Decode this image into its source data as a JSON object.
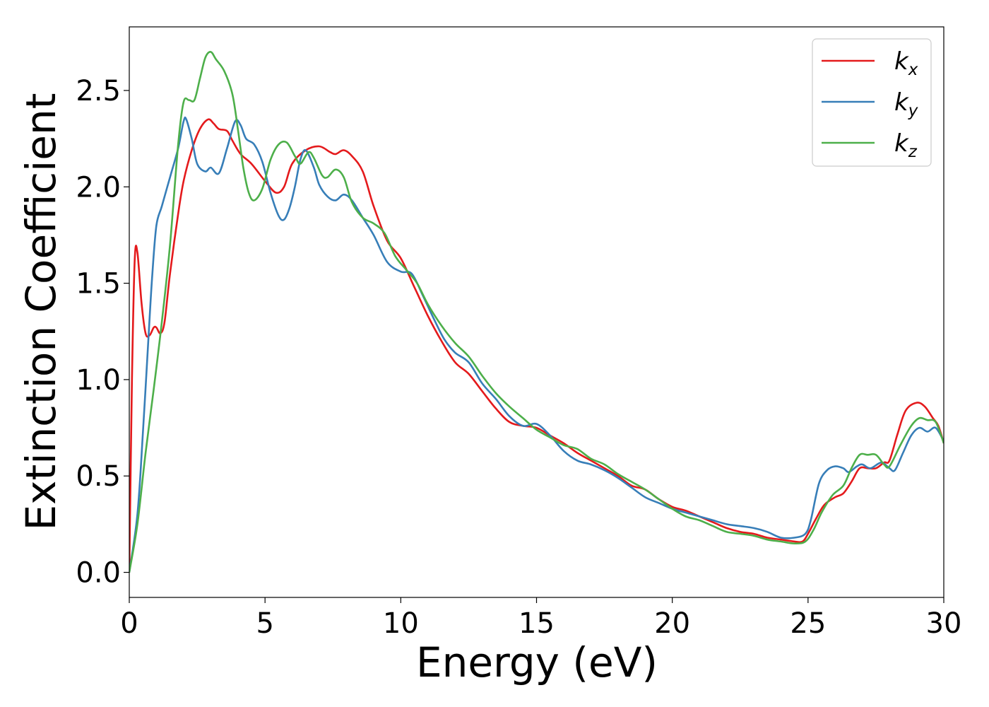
{
  "chart_data": {
    "type": "line",
    "title": "",
    "xlabel": "Energy (eV)",
    "ylabel": "Extinction Coefficient",
    "xlim": [
      0,
      30
    ],
    "ylim": [
      -0.13,
      2.83
    ],
    "xticks": [
      0,
      5,
      10,
      15,
      20,
      25,
      30
    ],
    "xtick_labels": [
      "0",
      "5",
      "10",
      "15",
      "20",
      "25",
      "30"
    ],
    "yticks": [
      0.0,
      0.5,
      1.0,
      1.5,
      2.0,
      2.5
    ],
    "ytick_labels": [
      "0.0",
      "0.5",
      "1.0",
      "1.5",
      "2.0",
      "2.5"
    ],
    "grid": false,
    "legend_position": "top-right",
    "series": [
      {
        "name": "k",
        "subscript": "x",
        "color": "#e41a1c",
        "points": [
          [
            0,
            0.0
          ],
          [
            0.1,
            1.0
          ],
          [
            0.2,
            1.62
          ],
          [
            0.3,
            1.66
          ],
          [
            0.45,
            1.4
          ],
          [
            0.6,
            1.24
          ],
          [
            0.75,
            1.23
          ],
          [
            0.9,
            1.27
          ],
          [
            1.0,
            1.27
          ],
          [
            1.15,
            1.24
          ],
          [
            1.3,
            1.3
          ],
          [
            1.5,
            1.55
          ],
          [
            1.8,
            1.86
          ],
          [
            2.0,
            2.03
          ],
          [
            2.3,
            2.19
          ],
          [
            2.6,
            2.3
          ],
          [
            2.9,
            2.35
          ],
          [
            3.1,
            2.33
          ],
          [
            3.3,
            2.3
          ],
          [
            3.6,
            2.29
          ],
          [
            3.8,
            2.24
          ],
          [
            4.1,
            2.17
          ],
          [
            4.5,
            2.12
          ],
          [
            5.0,
            2.03
          ],
          [
            5.4,
            1.97
          ],
          [
            5.7,
            2.0
          ],
          [
            6.0,
            2.12
          ],
          [
            6.5,
            2.19
          ],
          [
            7.0,
            2.21
          ],
          [
            7.4,
            2.18
          ],
          [
            7.6,
            2.17
          ],
          [
            7.9,
            2.19
          ],
          [
            8.2,
            2.16
          ],
          [
            8.6,
            2.08
          ],
          [
            9.0,
            1.9
          ],
          [
            9.5,
            1.72
          ],
          [
            10.0,
            1.63
          ],
          [
            10.5,
            1.48
          ],
          [
            11.0,
            1.33
          ],
          [
            11.5,
            1.2
          ],
          [
            12.0,
            1.09
          ],
          [
            12.5,
            1.03
          ],
          [
            13.0,
            0.94
          ],
          [
            13.5,
            0.85
          ],
          [
            14.0,
            0.78
          ],
          [
            14.5,
            0.76
          ],
          [
            15.0,
            0.75
          ],
          [
            15.5,
            0.71
          ],
          [
            16.0,
            0.67
          ],
          [
            16.5,
            0.62
          ],
          [
            17.0,
            0.58
          ],
          [
            17.5,
            0.54
          ],
          [
            18.0,
            0.5
          ],
          [
            18.5,
            0.45
          ],
          [
            19.0,
            0.43
          ],
          [
            19.5,
            0.38
          ],
          [
            20.0,
            0.34
          ],
          [
            20.5,
            0.32
          ],
          [
            21.0,
            0.29
          ],
          [
            21.5,
            0.26
          ],
          [
            22.0,
            0.23
          ],
          [
            22.5,
            0.21
          ],
          [
            23.0,
            0.2
          ],
          [
            23.5,
            0.18
          ],
          [
            24.0,
            0.17
          ],
          [
            24.5,
            0.16
          ],
          [
            24.8,
            0.16
          ],
          [
            25.0,
            0.2
          ],
          [
            25.3,
            0.28
          ],
          [
            25.6,
            0.35
          ],
          [
            26.0,
            0.39
          ],
          [
            26.3,
            0.41
          ],
          [
            26.6,
            0.47
          ],
          [
            26.9,
            0.54
          ],
          [
            27.2,
            0.54
          ],
          [
            27.5,
            0.54
          ],
          [
            27.8,
            0.57
          ],
          [
            28.0,
            0.58
          ],
          [
            28.3,
            0.72
          ],
          [
            28.6,
            0.84
          ],
          [
            29.0,
            0.88
          ],
          [
            29.3,
            0.86
          ],
          [
            29.6,
            0.8
          ],
          [
            29.8,
            0.76
          ],
          [
            30.0,
            0.67
          ]
        ]
      },
      {
        "name": "k",
        "subscript": "y",
        "color": "#377eb8",
        "points": [
          [
            0,
            0.0
          ],
          [
            0.3,
            0.3
          ],
          [
            0.5,
            0.72
          ],
          [
            0.7,
            1.2
          ],
          [
            0.85,
            1.55
          ],
          [
            1.0,
            1.8
          ],
          [
            1.2,
            1.9
          ],
          [
            1.5,
            2.05
          ],
          [
            1.8,
            2.2
          ],
          [
            2.0,
            2.34
          ],
          [
            2.1,
            2.35
          ],
          [
            2.3,
            2.25
          ],
          [
            2.5,
            2.12
          ],
          [
            2.8,
            2.08
          ],
          [
            3.0,
            2.1
          ],
          [
            3.3,
            2.07
          ],
          [
            3.6,
            2.2
          ],
          [
            3.9,
            2.34
          ],
          [
            4.1,
            2.32
          ],
          [
            4.3,
            2.25
          ],
          [
            4.6,
            2.22
          ],
          [
            4.9,
            2.13
          ],
          [
            5.2,
            1.97
          ],
          [
            5.5,
            1.85
          ],
          [
            5.7,
            1.83
          ],
          [
            5.9,
            1.89
          ],
          [
            6.1,
            2.0
          ],
          [
            6.3,
            2.14
          ],
          [
            6.5,
            2.19
          ],
          [
            6.8,
            2.1
          ],
          [
            7.0,
            2.01
          ],
          [
            7.3,
            1.95
          ],
          [
            7.6,
            1.93
          ],
          [
            7.9,
            1.96
          ],
          [
            8.2,
            1.93
          ],
          [
            8.6,
            1.84
          ],
          [
            9.0,
            1.75
          ],
          [
            9.5,
            1.61
          ],
          [
            10.0,
            1.56
          ],
          [
            10.4,
            1.55
          ],
          [
            10.8,
            1.44
          ],
          [
            11.2,
            1.32
          ],
          [
            11.6,
            1.21
          ],
          [
            12.0,
            1.14
          ],
          [
            12.5,
            1.09
          ],
          [
            13.0,
            0.98
          ],
          [
            13.5,
            0.9
          ],
          [
            14.0,
            0.81
          ],
          [
            14.5,
            0.76
          ],
          [
            15.0,
            0.77
          ],
          [
            15.5,
            0.71
          ],
          [
            16.0,
            0.63
          ],
          [
            16.5,
            0.58
          ],
          [
            17.0,
            0.56
          ],
          [
            17.5,
            0.53
          ],
          [
            18.0,
            0.49
          ],
          [
            18.5,
            0.44
          ],
          [
            19.0,
            0.39
          ],
          [
            19.5,
            0.36
          ],
          [
            20.0,
            0.33
          ],
          [
            20.5,
            0.31
          ],
          [
            21.0,
            0.29
          ],
          [
            21.5,
            0.27
          ],
          [
            22.0,
            0.25
          ],
          [
            22.5,
            0.24
          ],
          [
            23.0,
            0.23
          ],
          [
            23.5,
            0.21
          ],
          [
            24.0,
            0.18
          ],
          [
            24.5,
            0.18
          ],
          [
            24.9,
            0.2
          ],
          [
            25.1,
            0.27
          ],
          [
            25.4,
            0.46
          ],
          [
            25.7,
            0.53
          ],
          [
            26.0,
            0.55
          ],
          [
            26.3,
            0.54
          ],
          [
            26.5,
            0.52
          ],
          [
            26.8,
            0.55
          ],
          [
            27.0,
            0.56
          ],
          [
            27.3,
            0.54
          ],
          [
            27.7,
            0.57
          ],
          [
            28.0,
            0.54
          ],
          [
            28.2,
            0.53
          ],
          [
            28.5,
            0.62
          ],
          [
            28.8,
            0.71
          ],
          [
            29.1,
            0.75
          ],
          [
            29.4,
            0.73
          ],
          [
            29.7,
            0.75
          ],
          [
            30.0,
            0.68
          ]
        ]
      },
      {
        "name": "k",
        "subscript": "z",
        "color": "#4daf4a",
        "points": [
          [
            0,
            0.0
          ],
          [
            0.3,
            0.25
          ],
          [
            0.6,
            0.62
          ],
          [
            0.9,
            0.95
          ],
          [
            1.2,
            1.3
          ],
          [
            1.5,
            1.7
          ],
          [
            1.8,
            2.22
          ],
          [
            2.0,
            2.44
          ],
          [
            2.2,
            2.45
          ],
          [
            2.4,
            2.45
          ],
          [
            2.6,
            2.56
          ],
          [
            2.8,
            2.67
          ],
          [
            3.0,
            2.7
          ],
          [
            3.2,
            2.66
          ],
          [
            3.5,
            2.6
          ],
          [
            3.8,
            2.48
          ],
          [
            4.0,
            2.3
          ],
          [
            4.2,
            2.1
          ],
          [
            4.4,
            1.97
          ],
          [
            4.6,
            1.93
          ],
          [
            4.9,
            1.99
          ],
          [
            5.2,
            2.14
          ],
          [
            5.5,
            2.22
          ],
          [
            5.8,
            2.23
          ],
          [
            6.1,
            2.16
          ],
          [
            6.3,
            2.12
          ],
          [
            6.6,
            2.18
          ],
          [
            6.8,
            2.15
          ],
          [
            7.1,
            2.06
          ],
          [
            7.3,
            2.05
          ],
          [
            7.6,
            2.09
          ],
          [
            7.9,
            2.05
          ],
          [
            8.2,
            1.92
          ],
          [
            8.6,
            1.84
          ],
          [
            9.0,
            1.81
          ],
          [
            9.4,
            1.76
          ],
          [
            9.8,
            1.64
          ],
          [
            10.2,
            1.57
          ],
          [
            10.6,
            1.5
          ],
          [
            11.0,
            1.39
          ],
          [
            11.5,
            1.28
          ],
          [
            12.0,
            1.19
          ],
          [
            12.5,
            1.12
          ],
          [
            13.0,
            1.02
          ],
          [
            13.5,
            0.93
          ],
          [
            14.0,
            0.86
          ],
          [
            14.5,
            0.8
          ],
          [
            15.0,
            0.74
          ],
          [
            15.5,
            0.7
          ],
          [
            16.0,
            0.66
          ],
          [
            16.5,
            0.64
          ],
          [
            17.0,
            0.59
          ],
          [
            17.5,
            0.56
          ],
          [
            18.0,
            0.51
          ],
          [
            18.5,
            0.47
          ],
          [
            19.0,
            0.43
          ],
          [
            19.5,
            0.38
          ],
          [
            20.0,
            0.33
          ],
          [
            20.5,
            0.29
          ],
          [
            21.0,
            0.27
          ],
          [
            21.5,
            0.24
          ],
          [
            22.0,
            0.21
          ],
          [
            22.5,
            0.2
          ],
          [
            23.0,
            0.19
          ],
          [
            23.5,
            0.17
          ],
          [
            24.0,
            0.16
          ],
          [
            24.5,
            0.15
          ],
          [
            24.9,
            0.16
          ],
          [
            25.2,
            0.22
          ],
          [
            25.5,
            0.31
          ],
          [
            25.9,
            0.4
          ],
          [
            26.3,
            0.45
          ],
          [
            26.6,
            0.54
          ],
          [
            26.9,
            0.61
          ],
          [
            27.2,
            0.61
          ],
          [
            27.5,
            0.61
          ],
          [
            27.8,
            0.56
          ],
          [
            28.0,
            0.55
          ],
          [
            28.4,
            0.66
          ],
          [
            28.8,
            0.76
          ],
          [
            29.1,
            0.8
          ],
          [
            29.4,
            0.79
          ],
          [
            29.7,
            0.78
          ],
          [
            30.0,
            0.67
          ]
        ]
      }
    ]
  }
}
